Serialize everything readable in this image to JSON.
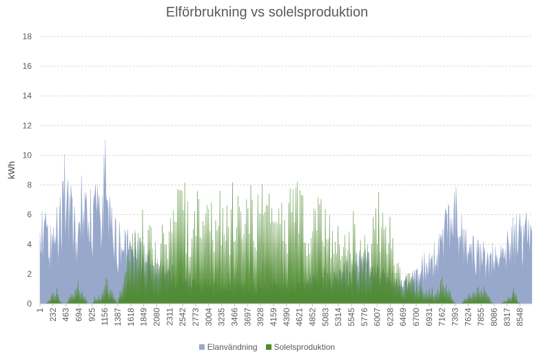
{
  "chart_data": {
    "type": "area",
    "title": "Elförbrukning vs solelsproduktion",
    "xlabel": "",
    "ylabel": "kWh",
    "ylim": [
      0,
      18
    ],
    "yticks": [
      0,
      2,
      4,
      6,
      8,
      10,
      12,
      14,
      16,
      18
    ],
    "xlim": [
      1,
      8760
    ],
    "xticks": [
      1,
      232,
      463,
      694,
      925,
      1156,
      1387,
      1618,
      1849,
      2080,
      2311,
      2542,
      2773,
      3004,
      3235,
      3466,
      3697,
      3928,
      4159,
      4390,
      4621,
      4852,
      5083,
      5314,
      5545,
      5776,
      6007,
      6238,
      6469,
      6700,
      6931,
      7162,
      7393,
      7624,
      7855,
      8086,
      8317,
      8548
    ],
    "grid": true,
    "legend_position": "bottom",
    "series": [
      {
        "name": "Elanvändning",
        "color": "#97A8CB",
        "x": [
          1,
          100,
          200,
          300,
          400,
          463,
          550,
          650,
          750,
          850,
          925,
          1000,
          1100,
          1156,
          1250,
          1387,
          1500,
          1618,
          1700,
          1849,
          1950,
          2080,
          2200,
          2311,
          2450,
          2542,
          2650,
          2773,
          2900,
          3004,
          3100,
          3235,
          3350,
          3466,
          3600,
          3697,
          3800,
          3928,
          4050,
          4159,
          4280,
          4390,
          4500,
          4621,
          4750,
          4852,
          4950,
          5083,
          5200,
          5314,
          5430,
          5545,
          5650,
          5776,
          5900,
          6007,
          6120,
          6238,
          6350,
          6469,
          6580,
          6700,
          6820,
          6931,
          7050,
          7162,
          7280,
          7393,
          7500,
          7624,
          7740,
          7855,
          7970,
          8086,
          8200,
          8317,
          8430,
          8548,
          8650,
          8760
        ],
        "values": [
          4.5,
          5.5,
          4.2,
          4.8,
          6.5,
          8.5,
          6.0,
          5.2,
          6.8,
          7.2,
          6.5,
          6.0,
          6.8,
          8.5,
          5.0,
          4.2,
          4.0,
          3.5,
          3.8,
          3.2,
          2.8,
          2.5,
          2.2,
          2.0,
          1.8,
          1.6,
          1.5,
          1.2,
          1.3,
          1.2,
          1.1,
          1.0,
          1.1,
          1.2,
          1.0,
          1.0,
          1.0,
          1.1,
          1.0,
          1.2,
          1.1,
          1.0,
          1.0,
          1.2,
          1.3,
          1.5,
          1.6,
          1.8,
          1.7,
          2.0,
          2.2,
          2.5,
          2.6,
          2.8,
          2.5,
          2.2,
          2.0,
          1.8,
          1.5,
          1.2,
          1.5,
          1.8,
          2.5,
          3.0,
          3.5,
          4.0,
          5.5,
          6.5,
          4.5,
          3.8,
          3.5,
          3.2,
          3.0,
          3.2,
          3.5,
          4.0,
          4.5,
          4.8,
          5.0,
          4.0
        ]
      },
      {
        "name": "Solelsproduktion",
        "color": "#4E8A2E",
        "x": [
          1,
          100,
          200,
          300,
          400,
          463,
          550,
          650,
          750,
          850,
          925,
          1000,
          1100,
          1156,
          1250,
          1387,
          1500,
          1618,
          1700,
          1849,
          1950,
          2080,
          2200,
          2311,
          2450,
          2542,
          2650,
          2773,
          2900,
          3004,
          3100,
          3235,
          3350,
          3466,
          3600,
          3697,
          3800,
          3928,
          4050,
          4159,
          4280,
          4390,
          4500,
          4621,
          4750,
          4852,
          4950,
          5083,
          5200,
          5314,
          5430,
          5545,
          5650,
          5776,
          5900,
          6007,
          6120,
          6238,
          6350,
          6469,
          6580,
          6700,
          6820,
          6931,
          7050,
          7162,
          7280,
          7393,
          7500,
          7624,
          7740,
          7855,
          7970,
          8086,
          8200,
          8317,
          8430,
          8548,
          8650,
          8760
        ],
        "values": [
          0,
          0,
          0.5,
          0.8,
          0,
          0,
          0.5,
          1.2,
          1.0,
          0,
          0,
          0.5,
          0.5,
          1.5,
          1.0,
          0,
          2.5,
          3.5,
          4.5,
          5.0,
          4.0,
          3.5,
          4.5,
          5.0,
          6.0,
          6.5,
          5.5,
          6.0,
          5.5,
          5.0,
          5.2,
          6.0,
          5.5,
          6.5,
          5.0,
          5.8,
          6.0,
          6.5,
          5.5,
          6.0,
          5.0,
          5.5,
          6.0,
          6.5,
          5.5,
          5.8,
          6.0,
          5.5,
          4.5,
          4.0,
          4.5,
          5.0,
          4.0,
          3.5,
          4.0,
          6.0,
          5.5,
          4.5,
          2.5,
          1.5,
          1.8,
          1.5,
          1.2,
          1.0,
          0.8,
          1.5,
          1.0,
          0,
          0,
          0.5,
          1.0,
          1.2,
          0.5,
          0,
          0,
          0.3,
          0.8,
          0,
          0,
          0
        ]
      }
    ]
  }
}
